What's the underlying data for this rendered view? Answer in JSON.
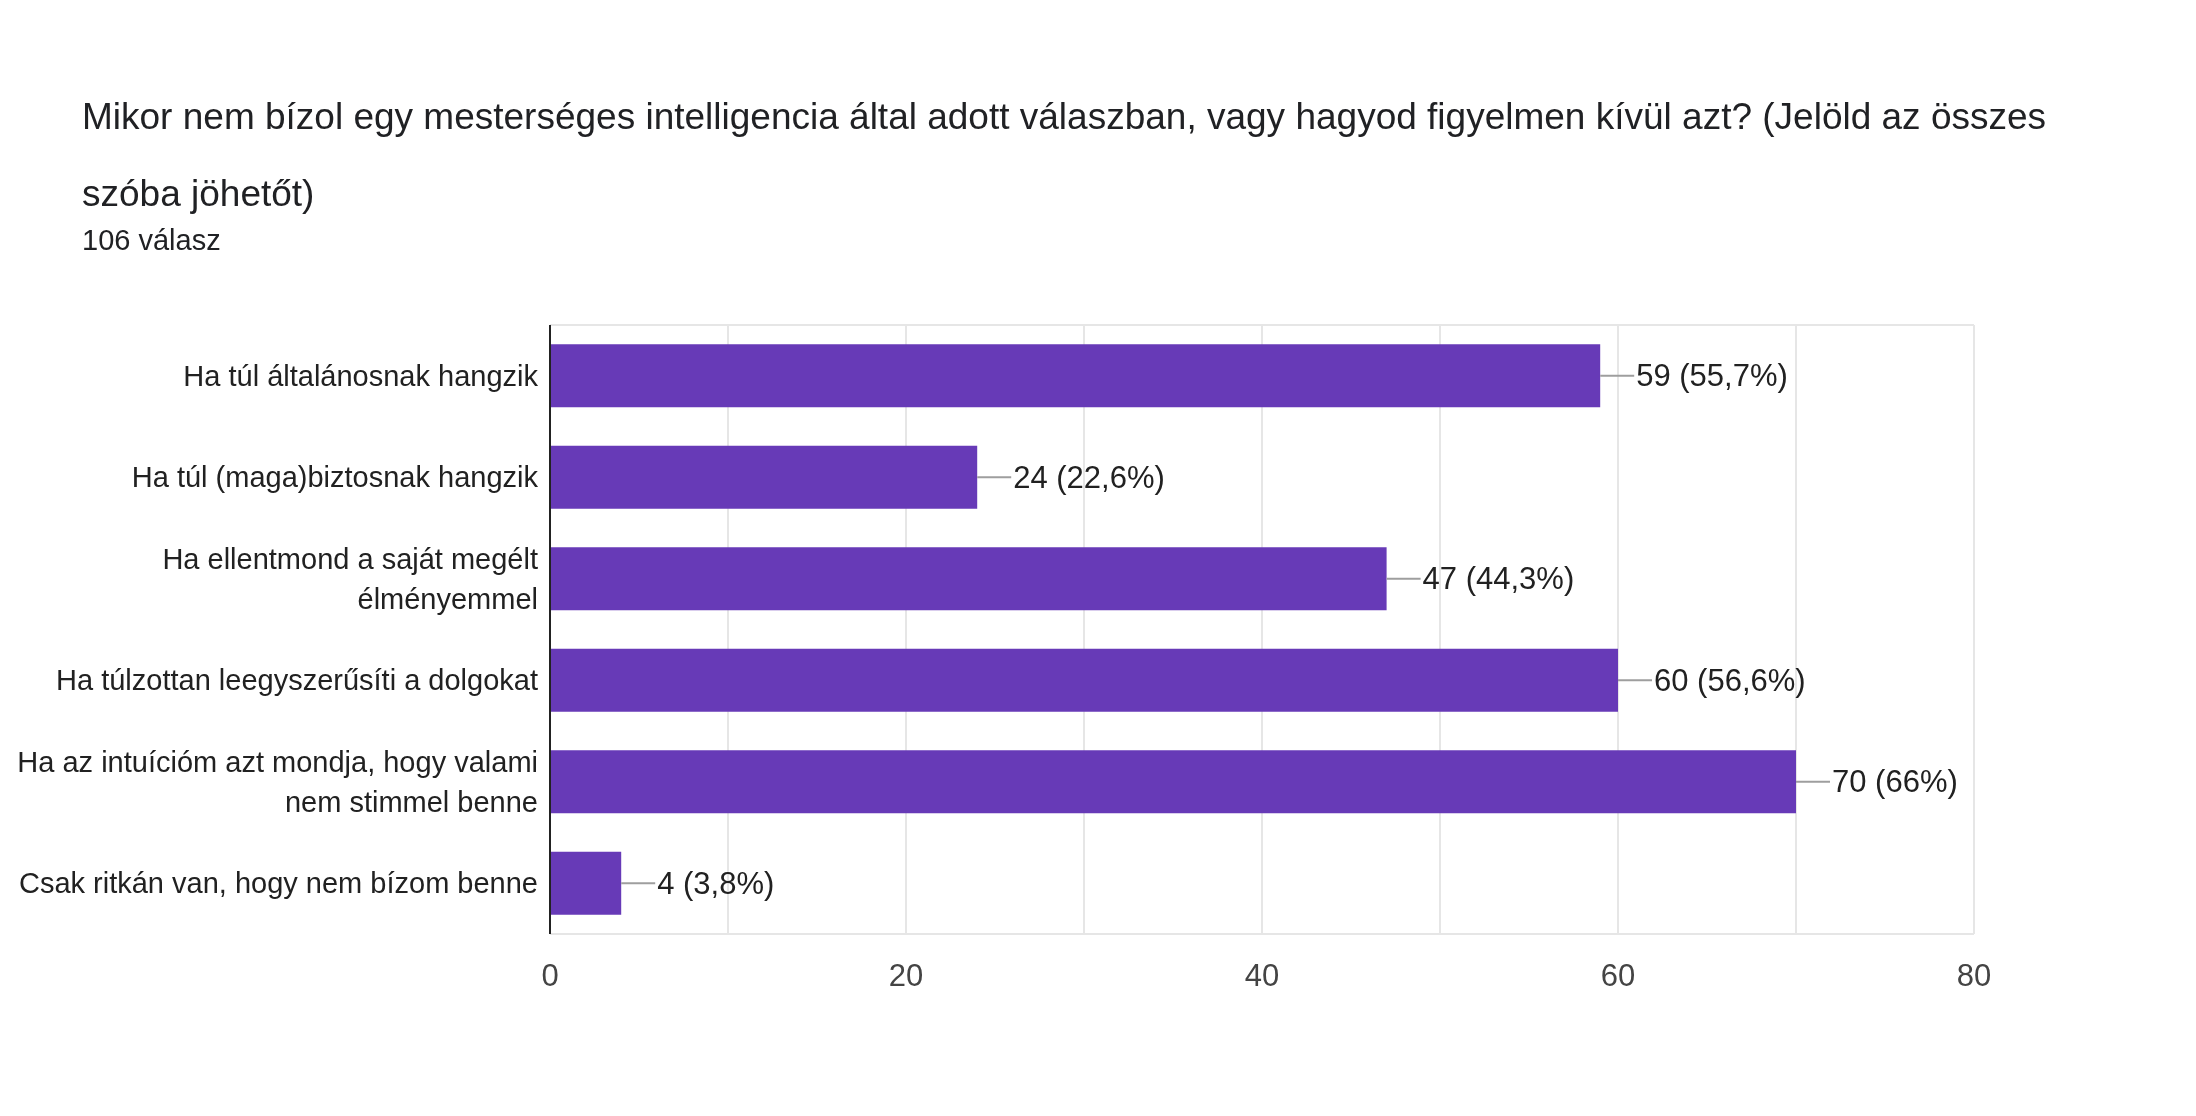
{
  "chart_data": {
    "type": "bar",
    "orientation": "horizontal",
    "title": "Mikor nem bízol egy mesterséges intelligencia által adott válaszban, vagy hagyod figyelmen kívül azt? (Jelöld az összes szóba jöhetőt)",
    "subtitle": "106 válasz",
    "categories": [
      "Ha túl általánosnak hangzik",
      "Ha túl (maga)biztosnak hangzik",
      "Ha ellentmond a saját megélt élményemmel",
      "Ha túlzottan leegyszerűsíti a dolgokat",
      "Ha az intuícióm azt mondja, hogy valami nem stimmel benne",
      "Csak ritkán van, hogy nem bízom benne"
    ],
    "values": [
      59,
      24,
      47,
      60,
      70,
      4
    ],
    "value_labels": [
      "59 (55,7%)",
      "24 (22,6%)",
      "47 (44,3%)",
      "60 (56,6%)",
      "70 (66%)",
      "4 (3,8%)"
    ],
    "color": "#673ab7",
    "xlim": [
      0,
      80
    ],
    "xticks": [
      0,
      {
        "value": 10,
        "label": null
      },
      20,
      {
        "value": 30,
        "label": null
      },
      40,
      {
        "value": 50,
        "label": null
      },
      60,
      {
        "value": 70,
        "label": null
      },
      80
    ],
    "grid": "x"
  }
}
